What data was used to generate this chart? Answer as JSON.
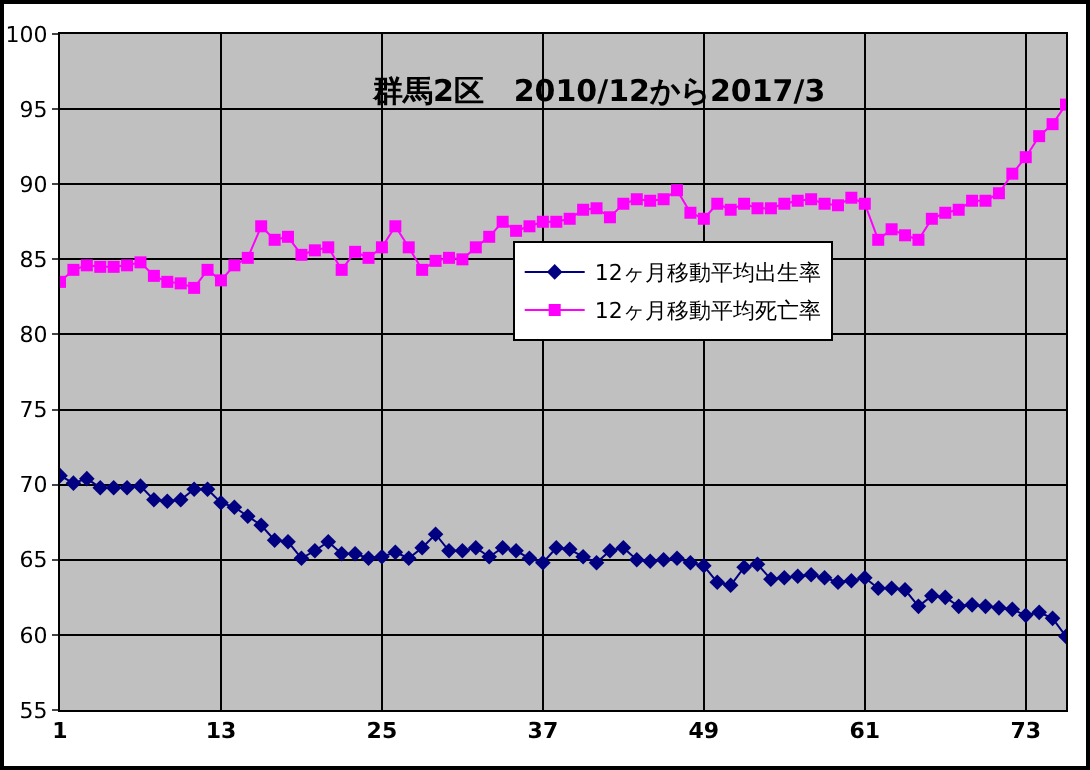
{
  "chart_data": {
    "type": "line",
    "title": "群馬2区　2010/12から2017/3",
    "categories": [
      "1",
      null,
      null,
      null,
      null,
      null,
      null,
      null,
      null,
      null,
      null,
      null,
      "13",
      null,
      null,
      null,
      null,
      null,
      null,
      null,
      null,
      null,
      null,
      null,
      "25",
      null,
      null,
      null,
      null,
      null,
      null,
      null,
      null,
      null,
      null,
      null,
      "37",
      null,
      null,
      null,
      null,
      null,
      null,
      null,
      null,
      null,
      null,
      null,
      "49",
      null,
      null,
      null,
      null,
      null,
      null,
      null,
      null,
      null,
      null,
      null,
      "61",
      null,
      null,
      null,
      null,
      null,
      null,
      null,
      null,
      null,
      null,
      null,
      "73",
      null,
      null,
      null
    ],
    "series": [
      {
        "name": "12ヶ月移動平均出生率",
        "color": "#000080",
        "marker": "diamond",
        "values": [
          70.6,
          70.1,
          70.4,
          69.8,
          69.8,
          69.8,
          69.9,
          69.0,
          68.9,
          69.0,
          69.7,
          69.7,
          68.8,
          68.5,
          67.9,
          67.3,
          66.3,
          66.2,
          65.1,
          65.6,
          66.2,
          65.4,
          65.4,
          65.1,
          65.2,
          65.5,
          65.1,
          65.8,
          66.7,
          65.6,
          65.6,
          65.8,
          65.2,
          65.8,
          65.6,
          65.1,
          64.8,
          65.8,
          65.7,
          65.2,
          64.8,
          65.6,
          65.8,
          65.0,
          64.9,
          65.0,
          65.1,
          64.8,
          64.6,
          63.5,
          63.3,
          64.5,
          64.7,
          63.7,
          63.8,
          63.9,
          64.0,
          63.8,
          63.5,
          63.6,
          63.8,
          63.1,
          63.1,
          63.0,
          61.9,
          62.6,
          62.5,
          61.9,
          62.0,
          61.9,
          61.8,
          61.7,
          61.3,
          61.5,
          61.1,
          59.9
        ]
      },
      {
        "name": "12ヶ月移動平均死亡率",
        "color": "#ff00ff",
        "marker": "square",
        "values": [
          83.5,
          84.3,
          84.6,
          84.5,
          84.5,
          84.6,
          84.8,
          83.9,
          83.5,
          83.4,
          83.1,
          84.3,
          83.6,
          84.6,
          85.1,
          87.2,
          86.3,
          86.5,
          85.3,
          85.6,
          85.8,
          84.3,
          85.5,
          85.1,
          85.8,
          87.2,
          85.8,
          84.3,
          84.9,
          85.1,
          85.0,
          85.8,
          86.5,
          87.5,
          86.9,
          87.2,
          87.5,
          87.5,
          87.7,
          88.3,
          88.4,
          87.8,
          88.7,
          89.0,
          88.9,
          89.0,
          89.6,
          88.1,
          87.7,
          88.7,
          88.3,
          88.7,
          88.4,
          88.4,
          88.7,
          88.9,
          89.0,
          88.7,
          88.6,
          89.1,
          88.7,
          86.3,
          87.0,
          86.6,
          86.3,
          87.7,
          88.1,
          88.3,
          88.9,
          88.9,
          89.4,
          90.7,
          91.8,
          93.2,
          94.0,
          95.3
        ]
      }
    ],
    "ylim": [
      55,
      100
    ],
    "yticks": [
      55,
      60,
      65,
      70,
      75,
      80,
      85,
      90,
      95,
      100
    ],
    "grid": true,
    "legend": "center",
    "line_style": "solid"
  }
}
